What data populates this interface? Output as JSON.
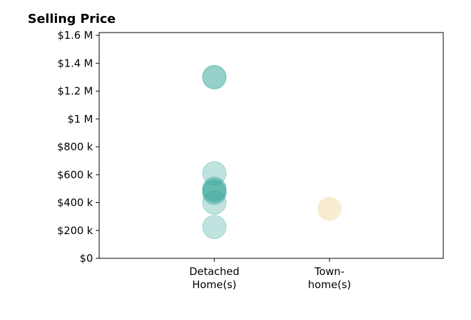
{
  "chart_data": {
    "type": "scatter",
    "title": "Selling Price",
    "xlabel": "",
    "ylabel": "",
    "categories": [
      [
        "Detached",
        "Home(s)"
      ],
      [
        "Town-",
        "home(s)"
      ]
    ],
    "y_ticks": [
      "$0",
      "$200 k",
      "$400 k",
      "$600 k",
      "$800 k",
      "$1 M",
      "$1.2 M",
      "$1.4 M",
      "$1.6 M"
    ],
    "y_tick_values": [
      0,
      200000,
      400000,
      600000,
      800000,
      1000000,
      1200000,
      1400000,
      1600000
    ],
    "ylim": [
      0,
      1620000
    ],
    "grid": false,
    "legend": "none",
    "series": [
      {
        "category": 0,
        "color": "#3aa89b",
        "values": [
          1300000,
          1300000,
          610000,
          500000,
          490000,
          480000,
          470000,
          400000,
          225000
        ]
      },
      {
        "category": 1,
        "color": "#f3e1b4",
        "values": [
          355000
        ]
      }
    ]
  }
}
